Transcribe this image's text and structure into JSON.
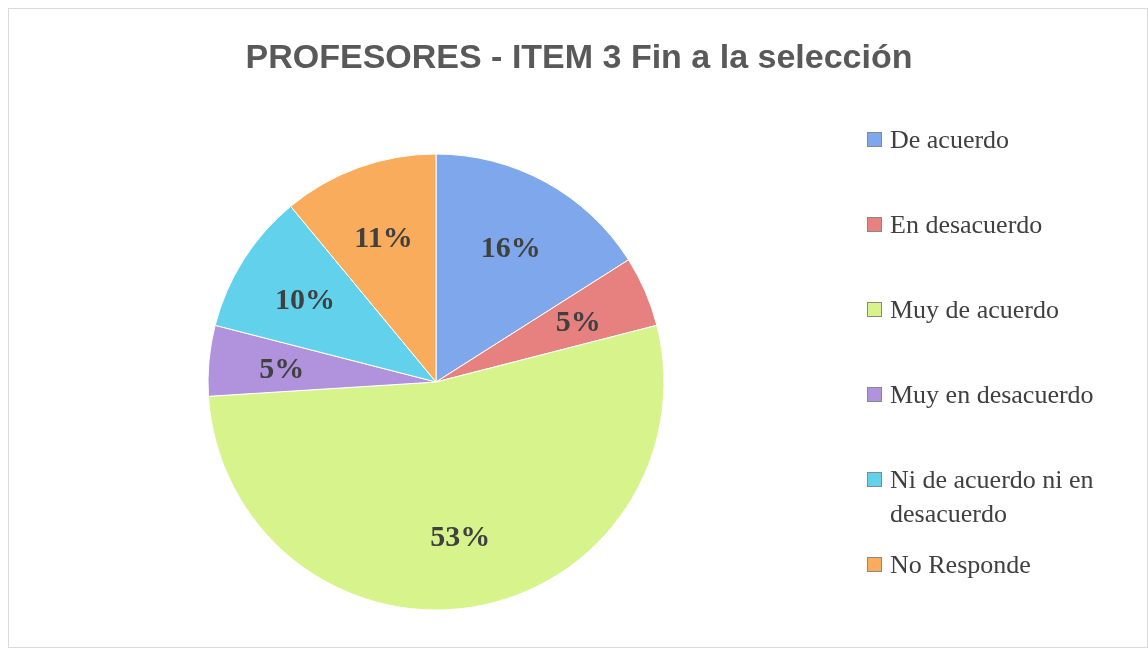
{
  "chart_data": {
    "type": "pie",
    "title": "PROFESORES - ITEM 3 Fin a la selección",
    "categories": [
      "De acuerdo",
      "En desacuerdo",
      "Muy de acuerdo",
      "Muy en desacuerdo",
      "Ni de acuerdo ni en desacuerdo",
      "No Responde"
    ],
    "values": [
      16,
      5,
      53,
      5,
      10,
      11
    ],
    "value_labels": [
      "16%",
      "5%",
      "53%",
      "5%",
      "10%",
      "11%"
    ],
    "colors": [
      "#7fa8ec",
      "#e7817f",
      "#d6f38c",
      "#b093dc",
      "#62d2ec",
      "#f8ac5c"
    ],
    "legend": "right"
  }
}
